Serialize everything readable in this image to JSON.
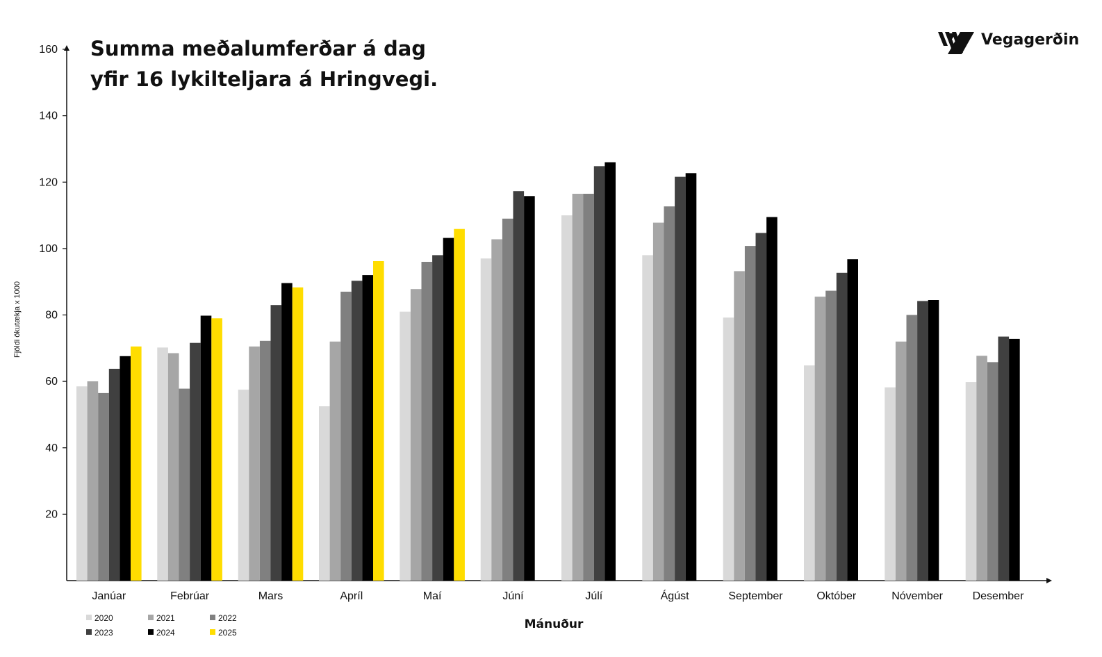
{
  "logo": {
    "text": "Vegagerðin",
    "icon": "striped-road-icon"
  },
  "chart_data": {
    "type": "bar",
    "title_lines": [
      "Summa meðalumferðar á dag",
      "yfir 16 lykilteljara á Hringvegi."
    ],
    "xlabel": "Mánuður",
    "ylabel": "Fjöldi ökutækja x 1000",
    "ylim": [
      0,
      160
    ],
    "yticks": [
      20,
      40,
      60,
      80,
      100,
      120,
      140,
      160
    ],
    "grid": false,
    "legend_position": "bottom-left",
    "categories": [
      "Janúar",
      "Febrúar",
      "Mars",
      "Apríl",
      "Maí",
      "Júní",
      "Júlí",
      "Ágúst",
      "September",
      "Október",
      "Nóvember",
      "Desember"
    ],
    "series": [
      {
        "name": "2020",
        "color": "#d9d9d9",
        "values": [
          58.5,
          70.2,
          57.5,
          52.5,
          81,
          97,
          110,
          98,
          79.2,
          64.8,
          58.2,
          59.8
        ]
      },
      {
        "name": "2021",
        "color": "#a6a6a6",
        "values": [
          60,
          68.5,
          70.5,
          72,
          87.8,
          102.8,
          116.5,
          107.8,
          93.2,
          85.5,
          72,
          67.7
        ]
      },
      {
        "name": "2022",
        "color": "#808080",
        "values": [
          56.5,
          57.8,
          72.2,
          87,
          96,
          109,
          116.5,
          112.7,
          100.8,
          87.3,
          80,
          65.8
        ]
      },
      {
        "name": "2023",
        "color": "#404040",
        "values": [
          63.8,
          71.6,
          83,
          90.3,
          98,
          117.3,
          124.8,
          121.6,
          104.7,
          92.7,
          84.2,
          73.5
        ]
      },
      {
        "name": "2024",
        "color": "#000000",
        "values": [
          67.6,
          79.8,
          89.6,
          92,
          103.2,
          115.8,
          126,
          122.7,
          109.5,
          96.8,
          84.5,
          72.8
        ]
      },
      {
        "name": "2025",
        "color": "#ffdd00",
        "values": [
          70.5,
          79,
          88.3,
          96.2,
          105.9,
          null,
          null,
          null,
          null,
          null,
          null,
          null
        ]
      }
    ]
  }
}
